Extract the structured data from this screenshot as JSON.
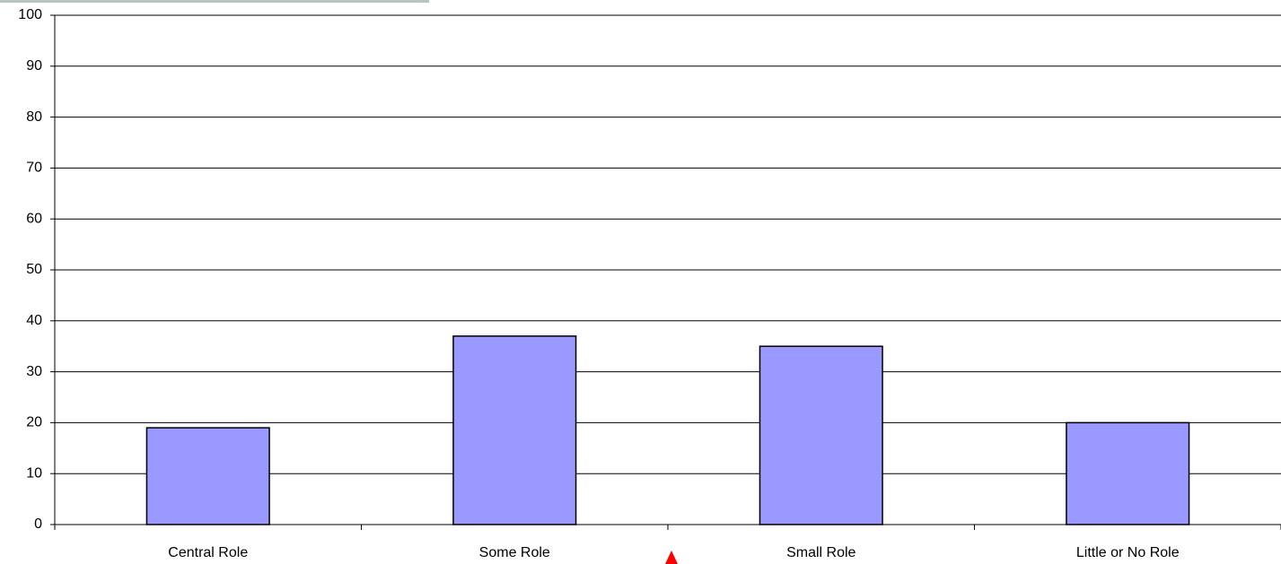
{
  "chart_data": {
    "type": "bar",
    "categories": [
      "Central Role",
      "Some Role",
      "Small Role",
      "Little or No Role"
    ],
    "values": [
      19,
      37,
      35,
      20
    ],
    "color": "#9999ff",
    "ylim": [
      0,
      100
    ],
    "yticks": [
      0,
      10,
      20,
      30,
      40,
      50,
      60,
      70,
      80,
      90,
      100
    ],
    "grid": true
  }
}
